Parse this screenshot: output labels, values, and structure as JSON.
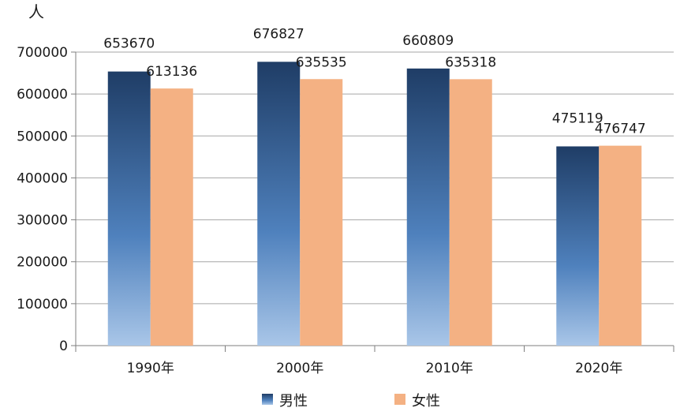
{
  "chart_data": {
    "type": "bar",
    "title": "",
    "xlabel": "",
    "ylabel": "人",
    "categories": [
      "1990年",
      "2000年",
      "2010年",
      "2020年"
    ],
    "series": [
      {
        "name": "男性",
        "values": [
          653670,
          676827,
          660809,
          475119
        ],
        "color": "#4f81bd",
        "color_dark": "#1f3d66",
        "color_light": "#a9c6e8"
      },
      {
        "name": "女性",
        "values": [
          613136,
          635535,
          635318,
          476747
        ],
        "color": "#f4b183"
      }
    ],
    "ylim": [
      0,
      700000
    ],
    "yticks": [
      "0",
      "100000",
      "200000",
      "300000",
      "400000",
      "500000",
      "600000",
      "700000"
    ],
    "grid": true,
    "legend_position": "bottom"
  }
}
